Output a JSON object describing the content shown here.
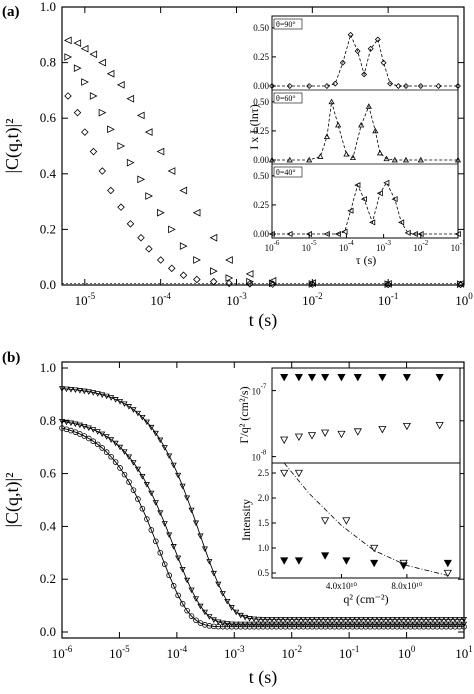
{
  "panel_a": {
    "tag": "(a)",
    "xlabel": "t (s)",
    "ylabel": "|C(q,t)|²",
    "x_ticks": [
      {
        "exp": "-5",
        "label": "10"
      },
      {
        "exp": "-4",
        "label": "10"
      },
      {
        "exp": "-3",
        "label": "10"
      },
      {
        "exp": "-2",
        "label": "10"
      },
      {
        "exp": "-1",
        "label": "10"
      },
      {
        "exp": "0",
        "label": "10"
      }
    ],
    "y_ticks": [
      "0.0",
      "0.2",
      "0.4",
      "0.6",
      "0.8",
      "1.0"
    ],
    "inset": {
      "ylabel": "I x L(lnτ)",
      "xlabel": "τ (s)",
      "y_ticks": [
        "0.00",
        "0.25",
        "0.50"
      ],
      "x_ticks": [
        {
          "exp": "-6",
          "label": "10"
        },
        {
          "exp": "-5",
          "label": "10"
        },
        {
          "exp": "-4",
          "label": "10"
        },
        {
          "exp": "-3",
          "label": "10"
        },
        {
          "exp": "-2",
          "label": "10"
        },
        {
          "exp": "-1",
          "label": "10"
        }
      ],
      "angle_labels": [
        "θ=90°",
        "θ=60°",
        "θ=40°"
      ]
    }
  },
  "panel_b": {
    "tag": "(b)",
    "xlabel": "t (s)",
    "ylabel": "|C(q,t)|²",
    "x_ticks": [
      {
        "exp": "-6",
        "label": "10"
      },
      {
        "exp": "-5",
        "label": "10"
      },
      {
        "exp": "-4",
        "label": "10"
      },
      {
        "exp": "-3",
        "label": "10"
      },
      {
        "exp": "-2",
        "label": "10"
      },
      {
        "exp": "-1",
        "label": "10"
      },
      {
        "exp": "0",
        "label": "10"
      },
      {
        "exp": "1",
        "label": "10"
      }
    ],
    "y_ticks": [
      "0.0",
      "0.2",
      "0.4",
      "0.6",
      "0.8",
      "1.0"
    ],
    "inset_top": {
      "ylabel": "Γ/q² (cm²/s)",
      "y_ticks": [
        {
          "exp": "-7",
          "label": "10"
        },
        {
          "exp": "-8",
          "label": "10"
        }
      ]
    },
    "inset_bottom": {
      "ylabel": "Intensity",
      "xlabel": "q² (cm⁻²)",
      "y_ticks": [
        "2.5",
        "2.0",
        "1.5",
        "1.0",
        "0.5"
      ],
      "x_ticks": [
        "4.0x10¹⁰",
        "8.0x10¹⁰"
      ]
    }
  },
  "chart_data": [
    {
      "type": "scatter",
      "panel": "a",
      "xscale": "log",
      "xlim": [
        5e-06,
        1
      ],
      "ylim": [
        0,
        1.0
      ],
      "xlabel": "t (s)",
      "ylabel": "|C(q,t)|²",
      "series": [
        {
          "marker": "diamond",
          "x": [
            6e-06,
            8e-06,
            1e-05,
            1.3e-05,
            1.7e-05,
            2.2e-05,
            3e-05,
            4e-05,
            5.5e-05,
            7e-05,
            0.0001,
            0.00014,
            0.0002,
            0.0003,
            0.0005,
            0.0008,
            0.0015,
            0.003,
            0.01,
            0.1,
            0.9
          ],
          "y": [
            0.68,
            0.62,
            0.55,
            0.48,
            0.41,
            0.34,
            0.28,
            0.22,
            0.17,
            0.13,
            0.09,
            0.06,
            0.035,
            0.02,
            0.012,
            0.006,
            0.004,
            0.003,
            0.003,
            0.002,
            0.002
          ]
        },
        {
          "marker": "triangle-right",
          "x": [
            6e-06,
            8e-06,
            1e-05,
            1.3e-05,
            1.7e-05,
            2.2e-05,
            3e-05,
            4e-05,
            5.5e-05,
            7e-05,
            0.0001,
            0.00014,
            0.0002,
            0.0003,
            0.0005,
            0.0008,
            0.0015,
            0.003,
            0.01,
            0.1,
            0.9
          ],
          "y": [
            0.82,
            0.78,
            0.73,
            0.68,
            0.62,
            0.56,
            0.5,
            0.44,
            0.38,
            0.32,
            0.26,
            0.2,
            0.14,
            0.09,
            0.05,
            0.025,
            0.012,
            0.006,
            0.004,
            0.003,
            0.003
          ]
        },
        {
          "marker": "triangle-left",
          "x": [
            6e-06,
            8e-06,
            1e-05,
            1.3e-05,
            1.7e-05,
            2.2e-05,
            3e-05,
            4e-05,
            5.5e-05,
            7e-05,
            0.0001,
            0.00014,
            0.0002,
            0.0003,
            0.0005,
            0.0008,
            0.0015,
            0.003,
            0.01,
            0.1,
            0.9
          ],
          "y": [
            0.88,
            0.87,
            0.85,
            0.83,
            0.8,
            0.76,
            0.72,
            0.67,
            0.61,
            0.55,
            0.48,
            0.41,
            0.34,
            0.26,
            0.17,
            0.09,
            0.04,
            0.015,
            0.007,
            0.004,
            0.004
          ]
        }
      ]
    },
    {
      "type": "line",
      "panel": "a-inset",
      "xscale": "log",
      "xlim": [
        1e-06,
        0.1
      ],
      "ylabel": "I x L(lnτ)",
      "xlabel": "τ (s)",
      "series": [
        {
          "name": "θ=90°",
          "x": [
            1e-06,
            3e-06,
            1e-05,
            3e-05,
            5e-05,
            8e-05,
            0.00013,
            0.0002,
            0.0003,
            0.00045,
            0.0007,
            0.001,
            0.0015,
            0.0025,
            0.004,
            0.01,
            0.03,
            0.1
          ],
          "y": [
            0,
            0,
            0,
            0,
            0.02,
            0.2,
            0.44,
            0.3,
            0.1,
            0.32,
            0.4,
            0.2,
            0.02,
            0,
            0,
            0,
            0,
            0
          ]
        },
        {
          "name": "θ=60°",
          "x": [
            1e-06,
            3e-06,
            1e-05,
            2e-05,
            3e-05,
            4e-05,
            6e-05,
            0.0001,
            0.00015,
            0.00025,
            0.0004,
            0.0006,
            0.0008,
            0.0012,
            0.002,
            0.004,
            0.01,
            0.1
          ],
          "y": [
            0,
            0,
            0,
            0.03,
            0.2,
            0.5,
            0.3,
            0.05,
            0.02,
            0.3,
            0.46,
            0.25,
            0.06,
            0.01,
            0,
            0,
            0,
            0
          ]
        },
        {
          "name": "θ=40°",
          "x": [
            1e-06,
            3e-06,
            1e-05,
            3e-05,
            6e-05,
            9e-05,
            0.00013,
            0.0002,
            0.0003,
            0.0005,
            0.0008,
            0.0012,
            0.002,
            0.003,
            0.0045,
            0.007,
            0.01,
            0.1
          ],
          "y": [
            0,
            0,
            0,
            0,
            0,
            0.02,
            0.2,
            0.42,
            0.3,
            0.1,
            0.35,
            0.44,
            0.3,
            0.1,
            0.01,
            0,
            0,
            0
          ]
        }
      ]
    },
    {
      "type": "scatter",
      "panel": "b",
      "xscale": "log",
      "xlim": [
        1e-06,
        10
      ],
      "ylim": [
        0,
        1.0
      ],
      "xlabel": "t (s)",
      "ylabel": "|C(q,t)|²",
      "series": [
        {
          "marker": "triangle-down",
          "tau": 0.00025,
          "y0": 0.93,
          "yinf": 0.048
        },
        {
          "marker": "triangle-down-upper",
          "tau": 9e-05,
          "y0": 0.815,
          "yinf": 0.03
        },
        {
          "marker": "circle",
          "tau": 5e-05,
          "y0": 0.8,
          "yinf": 0.02
        }
      ]
    },
    {
      "type": "scatter",
      "panel": "b-inset-top",
      "ylabel": "Γ/q² (cm²/s)",
      "yscale": "log",
      "series": [
        {
          "marker": "filled-triangle-down",
          "x": [
            5000000000.0,
            14000000000.0,
            22000000000.0,
            30000000000.0,
            40000000000.0,
            50000000000.0,
            65000000000.0,
            80000000000.0,
            100000000000.0
          ],
          "y": [
            1.6e-07,
            1.6e-07,
            1.6e-07,
            1.6e-07,
            1.6e-07,
            1.6e-07,
            1.6e-07,
            1.6e-07,
            1.6e-07
          ]
        },
        {
          "marker": "open-triangle-down",
          "x": [
            5000000000.0,
            14000000000.0,
            22000000000.0,
            30000000000.0,
            40000000000.0,
            50000000000.0,
            65000000000.0,
            80000000000.0,
            100000000000.0
          ],
          "y": [
            1.8e-08,
            2e-08,
            2.1e-08,
            2.3e-08,
            2.2e-08,
            2.4e-08,
            2.6e-08,
            2.9e-08,
            3e-08
          ]
        }
      ]
    },
    {
      "type": "scatter",
      "panel": "b-inset-bottom",
      "xlabel": "q² (cm⁻²)",
      "ylabel": "Intensity",
      "xlim": [
        0,
        110000000000.0
      ],
      "ylim": [
        0.4,
        2.7
      ],
      "series": [
        {
          "marker": "filled-triangle-down",
          "x": [
            5000000000.0,
            14000000000.0,
            30000000000.0,
            43000000000.0,
            60000000000.0,
            78000000000.0,
            105000000000.0
          ],
          "y": [
            0.75,
            0.75,
            0.85,
            0.75,
            0.7,
            0.65,
            0.7
          ]
        },
        {
          "marker": "open-triangle-down",
          "x": [
            5000000000.0,
            14000000000.0,
            30000000000.0,
            43000000000.0,
            60000000000.0,
            78000000000.0,
            105000000000.0
          ],
          "y": [
            2.5,
            2.5,
            1.55,
            1.55,
            1.0,
            0.7,
            0.5
          ]
        },
        {
          "marker": "dash-dot-fit",
          "x": [
            5000000000.0,
            20000000000.0,
            40000000000.0,
            60000000000.0,
            80000000000.0,
            105000000000.0
          ],
          "y": [
            2.7,
            2.1,
            1.45,
            0.95,
            0.65,
            0.45
          ]
        }
      ]
    }
  ]
}
